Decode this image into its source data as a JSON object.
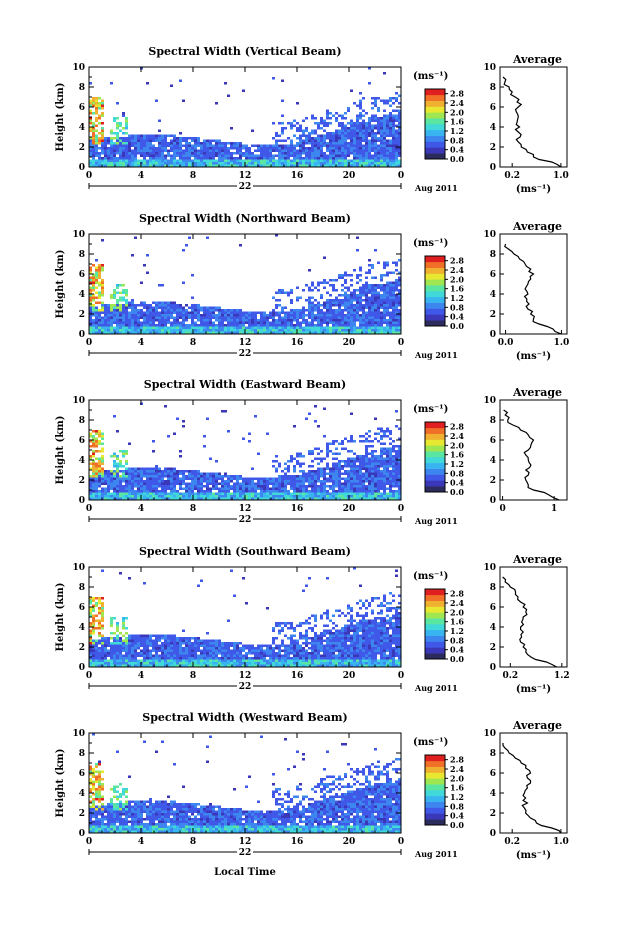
{
  "page": {
    "xlabel": "Local Time",
    "date_label": "Aug 2011",
    "day_label": "22"
  },
  "palette": [
    "#2b2b5e",
    "#3a37b8",
    "#4058e8",
    "#3d86f0",
    "#38b4f0",
    "#40d8d8",
    "#5ae6a0",
    "#a0e650",
    "#e8e830",
    "#f0b030",
    "#f07028",
    "#e02020"
  ],
  "chart_data": [
    {
      "type": "heatmap",
      "title": "Spectral Width (Vertical Beam)",
      "xlabel": "",
      "ylabel": "Height (km)",
      "x_ticks": [
        "0",
        "4",
        "8",
        "12",
        "16",
        "20",
        "0"
      ],
      "y_ticks": [
        "0",
        "2",
        "4",
        "6",
        "8",
        "10"
      ],
      "xlim": [
        0,
        24
      ],
      "ylim": [
        0,
        10
      ],
      "colorbar": {
        "label": "(ms⁻¹)",
        "ticks": [
          "0.0",
          "0.4",
          "0.8",
          "1.2",
          "1.6",
          "2.0",
          "2.4",
          "2.8"
        ],
        "range": [
          0,
          3.0
        ]
      },
      "profile": {
        "title": "Average",
        "xlabel": "(ms⁻¹)",
        "x_ticks": [
          "0.2",
          "1.0"
        ],
        "x_tick_values": [
          0.2,
          1.0
        ],
        "xlim": [
          0,
          1.1
        ],
        "ylim": [
          0,
          10
        ],
        "heights": [
          0,
          0.5,
          1,
          1.5,
          2,
          2.5,
          3,
          3.5,
          4,
          4.5,
          5,
          5.5,
          6,
          6.5,
          7,
          7.5,
          8,
          8.5,
          9
        ],
        "values": [
          1.0,
          0.85,
          0.55,
          0.45,
          0.35,
          0.3,
          0.33,
          0.3,
          0.32,
          0.28,
          0.3,
          0.27,
          0.3,
          0.28,
          0.25,
          0.2,
          0.15,
          0.08,
          0.05
        ]
      }
    },
    {
      "type": "heatmap",
      "title": "Spectral Width (Northward Beam)",
      "xlabel": "",
      "ylabel": "Height (km)",
      "x_ticks": [
        "0",
        "4",
        "8",
        "12",
        "16",
        "20",
        "0"
      ],
      "y_ticks": [
        "0",
        "2",
        "4",
        "6",
        "8",
        "10"
      ],
      "xlim": [
        0,
        24
      ],
      "ylim": [
        0,
        10
      ],
      "colorbar": {
        "label": "(ms⁻¹)",
        "ticks": [
          "0.0",
          "0.4",
          "0.8",
          "1.2",
          "1.6",
          "2.0",
          "2.4",
          "2.8"
        ],
        "range": [
          0,
          3.0
        ]
      },
      "profile": {
        "title": "Average",
        "xlabel": "(ms⁻¹)",
        "x_ticks": [
          "0.0",
          "1.0"
        ],
        "x_tick_values": [
          0.0,
          1.0
        ],
        "xlim": [
          -0.1,
          1.1
        ],
        "ylim": [
          0,
          10
        ],
        "heights": [
          0,
          0.5,
          1,
          1.5,
          2,
          2.5,
          3,
          3.5,
          4,
          4.5,
          5,
          5.5,
          6,
          6.5,
          7,
          7.5,
          8,
          8.5,
          9
        ],
        "values": [
          1.0,
          0.85,
          0.6,
          0.5,
          0.45,
          0.4,
          0.42,
          0.38,
          0.4,
          0.35,
          0.4,
          0.45,
          0.5,
          0.45,
          0.35,
          0.25,
          0.15,
          0.05,
          0.0
        ]
      }
    },
    {
      "type": "heatmap",
      "title": "Spectral Width (Eastward Beam)",
      "xlabel": "",
      "ylabel": "Height (km)",
      "x_ticks": [
        "0",
        "4",
        "8",
        "12",
        "16",
        "20",
        "0"
      ],
      "y_ticks": [
        "0",
        "2",
        "4",
        "6",
        "8",
        "10"
      ],
      "xlim": [
        0,
        24
      ],
      "ylim": [
        0,
        10
      ],
      "colorbar": {
        "label": "(ms⁻¹)",
        "ticks": [
          "0.0",
          "0.4",
          "0.8",
          "1.2",
          "1.6",
          "2.0",
          "2.4",
          "2.8"
        ],
        "range": [
          0,
          3.0
        ]
      },
      "profile": {
        "title": "Average",
        "xlabel": "",
        "x_ticks": [
          "0",
          "1"
        ],
        "x_tick_values": [
          0,
          1
        ],
        "xlim": [
          -0.05,
          1.25
        ],
        "ylim": [
          0,
          10
        ],
        "heights": [
          0,
          0.5,
          1,
          1.5,
          2,
          2.5,
          3,
          3.5,
          4,
          4.5,
          5,
          5.5,
          6,
          6.5,
          7,
          7.5,
          8,
          8.5,
          9
        ],
        "values": [
          1.1,
          0.9,
          0.6,
          0.5,
          0.45,
          0.5,
          0.45,
          0.55,
          0.5,
          0.45,
          0.5,
          0.55,
          0.6,
          0.5,
          0.35,
          0.2,
          0.1,
          0.05,
          0.02
        ]
      }
    },
    {
      "type": "heatmap",
      "title": "Spectral Width (Southward Beam)",
      "xlabel": "",
      "ylabel": "Height (km)",
      "x_ticks": [
        "0",
        "4",
        "8",
        "12",
        "16",
        "20",
        "0"
      ],
      "y_ticks": [
        "0",
        "2",
        "4",
        "6",
        "8",
        "10"
      ],
      "xlim": [
        0,
        24
      ],
      "ylim": [
        0,
        10
      ],
      "colorbar": {
        "label": "(ms⁻¹)",
        "ticks": [
          "0.0",
          "0.4",
          "0.8",
          "1.2",
          "1.6",
          "2.0",
          "2.4",
          "2.8"
        ],
        "range": [
          0,
          3.0
        ]
      },
      "profile": {
        "title": "Average",
        "xlabel": "(ms⁻¹)",
        "x_ticks": [
          "0.2",
          "1.2"
        ],
        "x_tick_values": [
          0.2,
          1.2
        ],
        "xlim": [
          0,
          1.3
        ],
        "ylim": [
          0,
          10
        ],
        "heights": [
          0,
          0.5,
          1,
          1.5,
          2,
          2.5,
          3,
          3.5,
          4,
          4.5,
          5,
          5.5,
          6,
          6.5,
          7,
          7.5,
          8,
          8.5,
          9
        ],
        "values": [
          1.1,
          0.9,
          0.6,
          0.5,
          0.45,
          0.4,
          0.42,
          0.45,
          0.4,
          0.42,
          0.45,
          0.5,
          0.45,
          0.4,
          0.35,
          0.3,
          0.2,
          0.1,
          0.05
        ]
      }
    },
    {
      "type": "heatmap",
      "title": "Spectral Width (Westward Beam)",
      "xlabel": "Local Time",
      "ylabel": "Height (km)",
      "x_ticks": [
        "0",
        "4",
        "8",
        "12",
        "16",
        "20",
        "0"
      ],
      "y_ticks": [
        "0",
        "2",
        "4",
        "6",
        "8",
        "10"
      ],
      "xlim": [
        0,
        24
      ],
      "ylim": [
        0,
        10
      ],
      "colorbar": {
        "label": "(ms⁻¹)",
        "ticks": [
          "0.0",
          "0.4",
          "0.8",
          "1.2",
          "1.6",
          "2.0",
          "2.4",
          "2.8"
        ],
        "range": [
          0,
          3.0
        ]
      },
      "profile": {
        "title": "Average",
        "xlabel": "(ms⁻¹)",
        "x_ticks": [
          "0.2",
          "1.0"
        ],
        "x_tick_values": [
          0.2,
          1.0
        ],
        "xlim": [
          0,
          1.1
        ],
        "ylim": [
          0,
          10
        ],
        "heights": [
          0,
          0.5,
          1,
          1.5,
          2,
          2.5,
          3,
          3.5,
          4,
          4.5,
          5,
          5.5,
          6,
          6.5,
          7,
          7.5,
          8,
          8.5,
          9
        ],
        "values": [
          1.0,
          0.85,
          0.6,
          0.5,
          0.42,
          0.4,
          0.45,
          0.42,
          0.4,
          0.45,
          0.5,
          0.45,
          0.5,
          0.42,
          0.35,
          0.25,
          0.15,
          0.08,
          0.05
        ]
      }
    }
  ]
}
